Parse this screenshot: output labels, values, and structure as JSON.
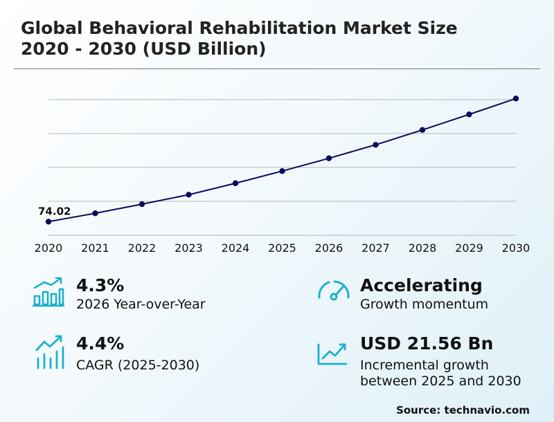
{
  "title": {
    "line1": "Global Behavioral Rehabilitation Market Size",
    "line2": "2020 - 2030 (USD Billion)"
  },
  "chart_data": {
    "type": "line",
    "x": [
      "2020",
      "2021",
      "2022",
      "2023",
      "2024",
      "2025",
      "2026",
      "2027",
      "2028",
      "2029",
      "2030"
    ],
    "values": [
      74.02,
      76.5,
      79.2,
      82.0,
      85.4,
      89.0,
      92.8,
      96.8,
      101.2,
      105.8,
      110.5
    ],
    "data_labels": [
      {
        "index": 0,
        "text": "74.02"
      }
    ],
    "grid": true,
    "ylim": [
      70,
      111
    ],
    "line_color": "#0a0a5c"
  },
  "stats": {
    "yoy": {
      "value": "4.3%",
      "desc": "2026 Year-over-Year",
      "icon": "bar-growth-icon"
    },
    "cagr": {
      "value": "4.4%",
      "desc": "CAGR (2025-2030)",
      "icon": "trend-bars-icon"
    },
    "momentum": {
      "value": "Accelerating",
      "desc": "Growth momentum",
      "icon": "gauge-icon"
    },
    "incremental": {
      "value": "USD 21.56 Bn",
      "desc_line1": "Incremental growth",
      "desc_line2": "between 2025 and 2030",
      "icon": "trend-chart-icon"
    }
  },
  "accent_color": "#1ab0cf",
  "source": "Source: technavio.com"
}
